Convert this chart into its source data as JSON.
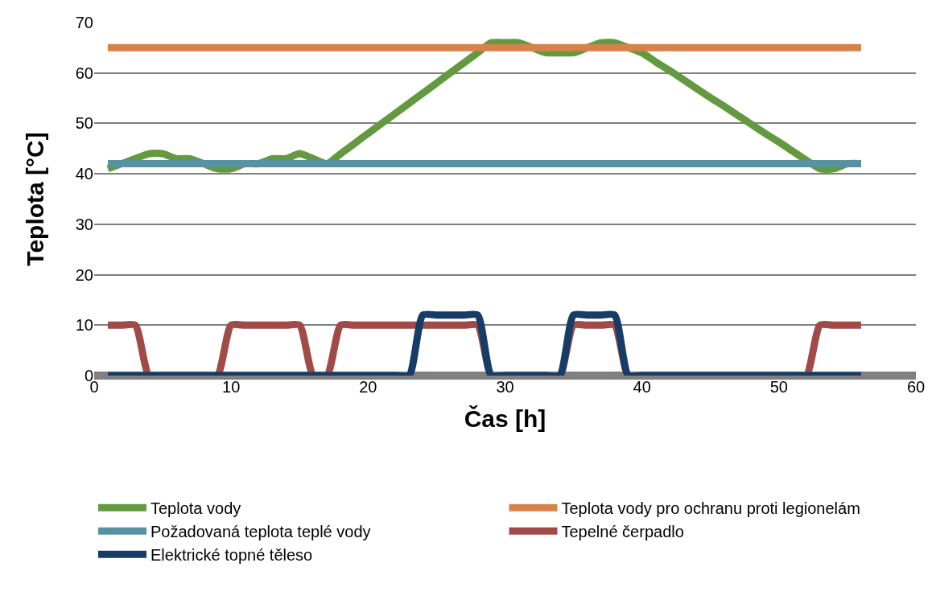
{
  "chart_data": {
    "type": "line",
    "xlabel": "Čas [h]",
    "ylabel": "Teplota [°C]",
    "x": [
      1,
      2,
      3,
      4,
      5,
      6,
      7,
      8,
      9,
      10,
      11,
      12,
      13,
      14,
      15,
      16,
      17,
      18,
      19,
      20,
      21,
      22,
      23,
      24,
      25,
      26,
      27,
      28,
      29,
      30,
      31,
      32,
      33,
      34,
      35,
      36,
      37,
      38,
      39,
      40,
      41,
      42,
      43,
      44,
      45,
      46,
      47,
      48,
      49,
      50,
      51,
      52,
      53,
      54,
      55,
      56
    ],
    "series": [
      {
        "name": "Teplota vody",
        "color": "#63993f",
        "values": [
          41,
          42,
          43,
          44,
          44,
          43,
          43,
          42,
          41,
          41,
          42,
          42,
          43,
          43,
          44,
          43,
          42,
          44,
          46,
          48,
          50,
          52,
          54,
          56,
          58,
          60,
          62,
          64,
          66,
          66,
          66,
          65,
          64,
          64,
          64,
          65,
          66,
          66,
          65,
          64,
          62.2,
          60.5,
          58.7,
          56.9,
          55.1,
          53.4,
          51.6,
          49.8,
          48,
          46.3,
          44.5,
          42.7,
          41,
          41,
          42,
          42
        ]
      },
      {
        "name": "Teplota vody pro ochranu proti legionelám",
        "color": "#d7824b",
        "values": [
          65,
          65,
          65,
          65,
          65,
          65,
          65,
          65,
          65,
          65,
          65,
          65,
          65,
          65,
          65,
          65,
          65,
          65,
          65,
          65,
          65,
          65,
          65,
          65,
          65,
          65,
          65,
          65,
          65,
          65,
          65,
          65,
          65,
          65,
          65,
          65,
          65,
          65,
          65,
          65,
          65,
          65,
          65,
          65,
          65,
          65,
          65,
          65,
          65,
          65,
          65,
          65,
          65,
          65,
          65,
          65
        ]
      },
      {
        "name": "Požadovaná teplota teplé vody",
        "color": "#5792a0",
        "values": [
          42,
          42,
          42,
          42,
          42,
          42,
          42,
          42,
          42,
          42,
          42,
          42,
          42,
          42,
          42,
          42,
          42,
          42,
          42,
          42,
          42,
          42,
          42,
          42,
          42,
          42,
          42,
          42,
          42,
          42,
          42,
          42,
          42,
          42,
          42,
          42,
          42,
          42,
          42,
          42,
          42,
          42,
          42,
          42,
          42,
          42,
          42,
          42,
          42,
          42,
          42,
          42,
          42,
          42,
          42,
          42
        ]
      },
      {
        "name": "Tepelné čerpadlo",
        "color": "#a24a47",
        "values": [
          10,
          10,
          10,
          0,
          0,
          0,
          0,
          0,
          0,
          10,
          10,
          10,
          10,
          10,
          10,
          0,
          0,
          10,
          10,
          10,
          10,
          10,
          10,
          10,
          10,
          10,
          10,
          10,
          0,
          0,
          0,
          0,
          0,
          0,
          10,
          10,
          10,
          10,
          0,
          0,
          0,
          0,
          0,
          0,
          0,
          0,
          0,
          0,
          0,
          0,
          0,
          0,
          10,
          10,
          10,
          10
        ]
      },
      {
        "name": "Elektrické topné těleso",
        "color": "#163c68",
        "values": [
          0,
          0,
          0,
          0,
          0,
          0,
          0,
          0,
          0,
          0,
          0,
          0,
          0,
          0,
          0,
          0,
          0,
          0,
          0,
          0,
          0,
          0,
          0,
          12,
          12,
          12,
          12,
          12,
          0,
          0,
          0,
          0,
          0,
          0,
          12,
          12,
          12,
          12,
          0,
          0,
          0,
          0,
          0,
          0,
          0,
          0,
          0,
          0,
          0,
          0,
          0,
          0,
          0,
          0,
          0,
          0
        ]
      }
    ],
    "xlim": [
      0,
      60
    ],
    "xticks": [
      0,
      10,
      20,
      30,
      40,
      50,
      60
    ],
    "ylim": [
      0,
      70
    ],
    "yticks": [
      0,
      10,
      20,
      30,
      40,
      50,
      60,
      70
    ],
    "grid": "y",
    "legend": "bottom",
    "marker": "none",
    "line_style": "solid"
  }
}
